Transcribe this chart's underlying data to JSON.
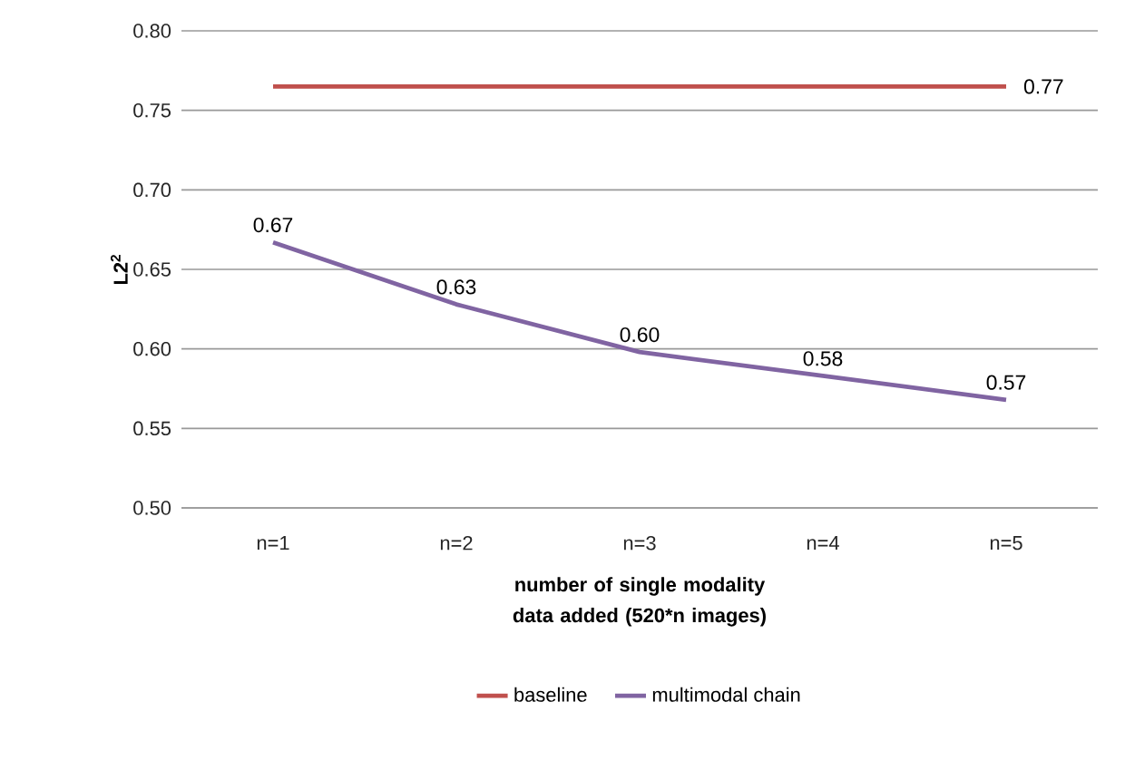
{
  "chart_data": {
    "type": "line",
    "xlabel": "number of single modality data added (520*n images)",
    "ylabel": "L2$^{2}$",
    "categories": [
      "n=1",
      "n=2",
      "n=3",
      "n=4",
      "n=5"
    ],
    "series": [
      {
        "name": "baseline",
        "color": "#c0504d",
        "values": [
          0.765,
          0.765,
          0.765,
          0.765,
          0.765
        ],
        "value_labels": [
          null,
          null,
          null,
          null,
          "0.77"
        ]
      },
      {
        "name": "multimodal chain",
        "color": "#8064a2",
        "values": [
          0.667,
          0.628,
          0.598,
          0.583,
          0.568
        ],
        "value_labels": [
          "0.67",
          "0.63",
          "0.60",
          "0.58",
          "0.57"
        ]
      }
    ],
    "ylim": [
      0.5,
      0.8
    ],
    "yticks": [
      "0.50",
      "0.55",
      "0.60",
      "0.65",
      "0.70",
      "0.75",
      "0.80"
    ],
    "grid": "y",
    "legend": "bottom",
    "marker": "none",
    "line_style": "solid"
  }
}
